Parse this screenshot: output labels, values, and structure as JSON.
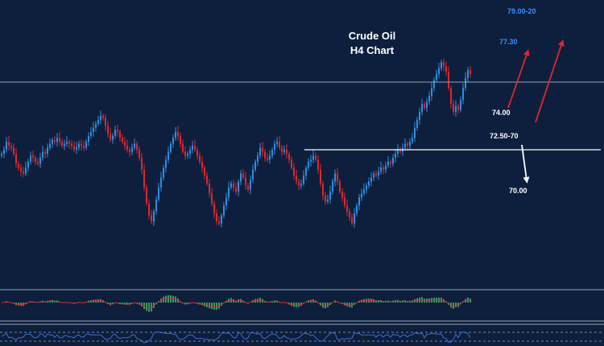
{
  "title_line1": "Crude Oil",
  "title_line2": "H4 Chart",
  "colors": {
    "background": "#0d1f3c",
    "bull": "#2f8fe0",
    "bear": "#e0262f",
    "level_line": "#ffffff",
    "resistance_line": "#8fa0b8",
    "target_label": "#3a8fff",
    "arrow_up": "#e0262f",
    "arrow_down": "#ffffff",
    "macd_hist": "#3fbf6a",
    "macd_signal": "#e0262f",
    "panel_border": "#9aa6b8",
    "rsi_line": "#3a6fd8"
  },
  "chart_data": {
    "type": "candlestick",
    "title": "Crude Oil H4 Chart",
    "ylim": [
      67,
      80
    ],
    "levels": [
      {
        "label": "74.00",
        "value": 74.0,
        "type": "support"
      },
      {
        "label": "72.50-70",
        "value": 72.5,
        "type": "support"
      },
      {
        "label": "70.00",
        "value": 70.0,
        "type": "target"
      }
    ],
    "targets": [
      {
        "label": "77.30",
        "value": 77.3
      },
      {
        "label": "79.00-20",
        "value": 79.0
      }
    ],
    "resistance_value": 75.9,
    "closes": [
      72.3,
      72.5,
      72.9,
      72.7,
      72.6,
      72.3,
      71.8,
      71.6,
      71.4,
      71.3,
      71.6,
      71.9,
      72.2,
      72.1,
      71.9,
      71.8,
      72.1,
      72.4,
      72.3,
      72.6,
      72.8,
      73.0,
      72.9,
      73.1,
      72.9,
      72.7,
      72.8,
      72.9,
      72.8,
      72.7,
      72.5,
      72.6,
      72.8,
      72.7,
      72.6,
      72.9,
      73.2,
      73.4,
      73.6,
      73.8,
      74.0,
      74.2,
      74.1,
      73.7,
      73.3,
      73.0,
      73.2,
      73.5,
      73.4,
      73.1,
      72.9,
      72.7,
      72.5,
      72.4,
      72.6,
      72.8,
      72.5,
      72.1,
      71.5,
      70.6,
      69.8,
      69.2,
      68.9,
      69.4,
      70.0,
      70.6,
      71.1,
      71.6,
      72.0,
      72.4,
      72.8,
      73.1,
      73.4,
      73.2,
      72.8,
      72.4,
      72.2,
      72.3,
      72.5,
      72.7,
      72.5,
      72.2,
      71.9,
      71.6,
      71.2,
      70.8,
      70.3,
      69.8,
      69.3,
      68.9,
      68.8,
      69.2,
      69.7,
      70.1,
      70.6,
      70.8,
      70.6,
      70.4,
      70.9,
      71.3,
      71.1,
      70.7,
      70.5,
      71.0,
      71.5,
      71.9,
      72.2,
      72.6,
      72.4,
      72.1,
      72.0,
      72.2,
      72.5,
      72.8,
      72.9,
      72.6,
      72.4,
      72.5,
      72.3,
      72.0,
      71.6,
      71.2,
      70.9,
      70.7,
      70.8,
      71.2,
      71.6,
      71.9,
      72.0,
      72.2,
      72.0,
      71.5,
      70.8,
      70.2,
      69.9,
      70.0,
      70.4,
      70.9,
      71.3,
      70.9,
      70.4,
      70.1,
      69.7,
      69.4,
      69.1,
      68.8,
      69.3,
      69.7,
      70.1,
      70.3,
      70.5,
      70.7,
      70.9,
      71.1,
      71.3,
      71.2,
      71.4,
      71.6,
      71.5,
      71.7,
      71.9,
      71.8,
      72.1,
      72.3,
      72.5,
      72.4,
      72.6,
      72.8,
      72.7,
      72.9,
      73.1,
      73.6,
      74.0,
      74.4,
      74.8,
      74.6,
      74.9,
      75.2,
      75.6,
      76.0,
      76.3,
      76.6,
      76.9,
      76.7,
      76.4,
      75.6,
      74.8,
      74.4,
      74.7,
      74.5,
      75.0,
      75.6,
      76.1,
      76.5,
      76.3
    ]
  }
}
